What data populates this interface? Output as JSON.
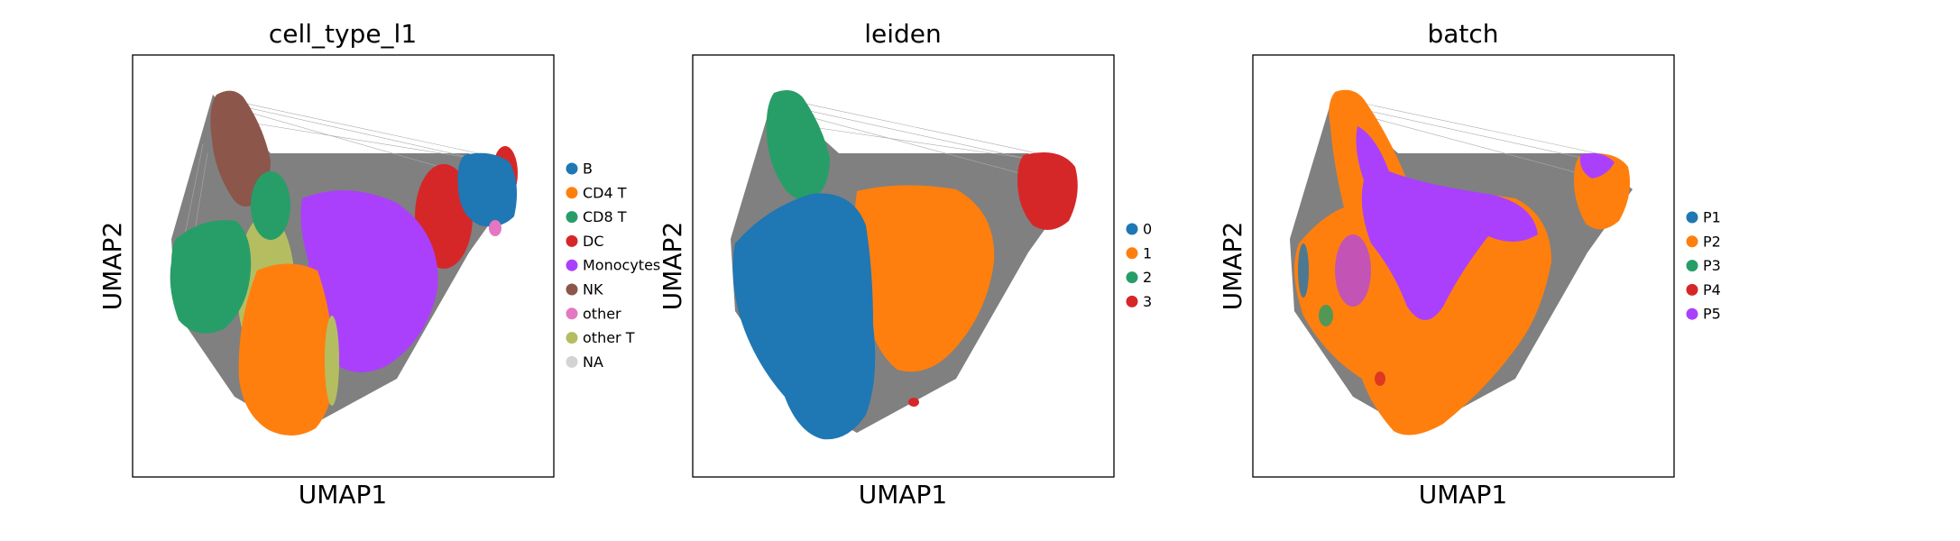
{
  "chart_data": [
    {
      "type": "scatter",
      "title": "cell_type_l1",
      "xlabel": "UMAP1",
      "ylabel": "UMAP2",
      "grid": false,
      "legend_placement": "right",
      "series": [
        {
          "name": "B",
          "color": "#1f77b4"
        },
        {
          "name": "CD4 T",
          "color": "#ff7f0e"
        },
        {
          "name": "CD8 T",
          "color": "#279e68"
        },
        {
          "name": "DC",
          "color": "#d62728"
        },
        {
          "name": "Monocytes",
          "color": "#aa40fc"
        },
        {
          "name": "NK",
          "color": "#8c564b"
        },
        {
          "name": "other",
          "color": "#e377c2"
        },
        {
          "name": "other T",
          "color": "#b5bd61"
        },
        {
          "name": "NA",
          "color": "#d3d3d3"
        }
      ]
    },
    {
      "type": "scatter",
      "title": "leiden",
      "xlabel": "UMAP1",
      "ylabel": "UMAP2",
      "grid": false,
      "legend_placement": "right",
      "series": [
        {
          "name": "0",
          "color": "#1f77b4"
        },
        {
          "name": "1",
          "color": "#ff7f0e"
        },
        {
          "name": "2",
          "color": "#279e68"
        },
        {
          "name": "3",
          "color": "#d62728"
        }
      ]
    },
    {
      "type": "scatter",
      "title": "batch",
      "xlabel": "UMAP1",
      "ylabel": "UMAP2",
      "grid": false,
      "legend_placement": "right",
      "series": [
        {
          "name": "P1",
          "color": "#1f77b4"
        },
        {
          "name": "P2",
          "color": "#ff7f0e"
        },
        {
          "name": "P3",
          "color": "#279e68"
        },
        {
          "name": "P4",
          "color": "#d62728"
        },
        {
          "name": "P5",
          "color": "#aa40fc"
        }
      ]
    }
  ]
}
